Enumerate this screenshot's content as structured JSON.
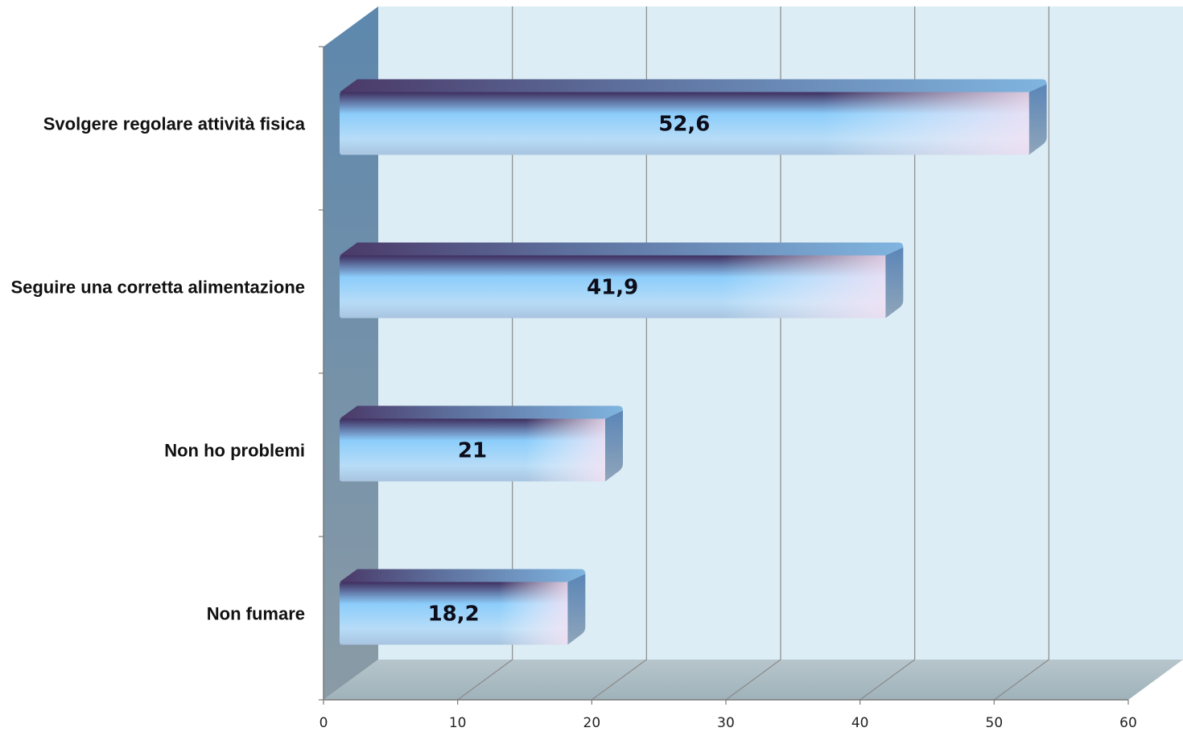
{
  "chart_data": {
    "type": "bar",
    "orientation": "horizontal",
    "style": "3d",
    "categories": [
      "Svolgere regolare attività fisica",
      "Seguire una corretta alimentazione",
      "Non ho problemi",
      "Non fumare"
    ],
    "values": [
      52.6,
      41.9,
      21,
      18.2
    ],
    "value_labels": [
      "52,6",
      "41,9",
      "21",
      "18,2"
    ],
    "xlim": [
      0,
      60
    ],
    "xticks": [
      "0",
      "10",
      "20",
      "30",
      "40",
      "50",
      "60"
    ],
    "grid": true,
    "legend": "none",
    "colors": {
      "wall": "#dcedf5",
      "floor": "#a9bcc4",
      "side_wall": "#6f8fab",
      "bar_light": "#8ccdfb",
      "bar_dark": "#4a3968",
      "bar_pink": "#f3e2f3"
    }
  }
}
